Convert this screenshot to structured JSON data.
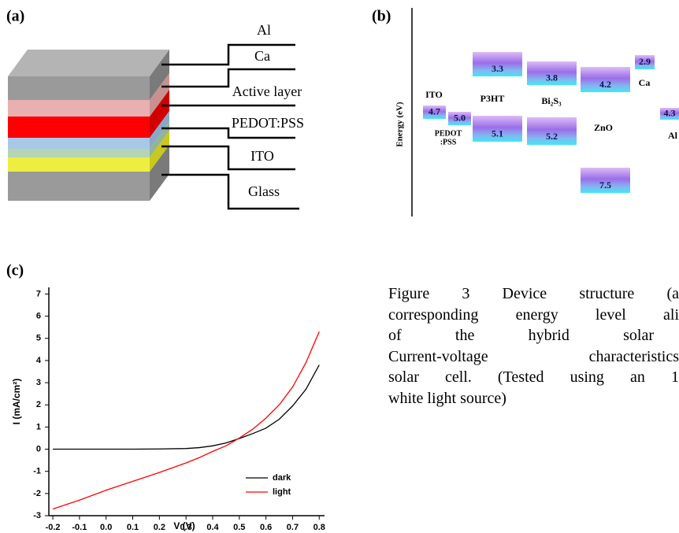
{
  "panel_a": {
    "label": "(a)",
    "layers": [
      "Al",
      "Ca",
      "Active layer",
      "PEDOT:PSS",
      "ITO",
      "Glass"
    ]
  },
  "panel_b": {
    "label": "(b)",
    "axis_label": "Energy (eV)",
    "labels": [
      "ITO",
      "PEDOT",
      ":PSS",
      "P3HT",
      "Bi₂S₃",
      "ZnO",
      "Ca",
      "Al"
    ],
    "levels": [
      "4.7",
      "5.0",
      "3.3",
      "5.1",
      "3.8",
      "5.2",
      "4.2",
      "7.5",
      "2.9",
      "4.3"
    ]
  },
  "chart_data": {
    "type": "line",
    "panel_label": "(c)",
    "x_label": "V (V)",
    "y_label": "I (mA/cm²)",
    "x": [
      -0.2,
      -0.1,
      0,
      0.1,
      0.2,
      0.3,
      0.35,
      0.4,
      0.45,
      0.5,
      0.55,
      0.6,
      0.65,
      0.7,
      0.75,
      0.8
    ],
    "series": [
      {
        "name": "dark",
        "color": "#000000",
        "values": [
          0,
          0,
          0,
          0,
          0.01,
          0.03,
          0.07,
          0.15,
          0.28,
          0.48,
          0.7,
          0.95,
          1.35,
          1.95,
          2.7,
          3.8
        ]
      },
      {
        "name": "light",
        "color": "#ff0000",
        "values": [
          -2.7,
          -2.3,
          -1.85,
          -1.45,
          -1.05,
          -0.62,
          -0.38,
          -0.1,
          0.15,
          0.5,
          0.9,
          1.4,
          2.0,
          2.8,
          3.9,
          5.3
        ]
      }
    ],
    "xlim": [
      -0.215,
      0.82
    ],
    "ylim": [
      -3,
      7.3
    ],
    "xticks": [
      -0.2,
      -0.1,
      {
        "value": 0,
        "label": "0.0"
      },
      0.1,
      0.2,
      0.3,
      0.4,
      0.5,
      0.6,
      0.7,
      0.8
    ],
    "yticks": [
      -3,
      -2,
      -1,
      0,
      1,
      2,
      3,
      4,
      5,
      6,
      7
    ],
    "grid": false,
    "legend": "lower right"
  },
  "caption": {
    "lines": [
      "Figure 3 Device structure (a",
      "corresponding energy level ali",
      "of the hybrid solar",
      "Current-voltage characteristics",
      "solar cell. (Tested using an 1",
      "white light source)"
    ]
  }
}
